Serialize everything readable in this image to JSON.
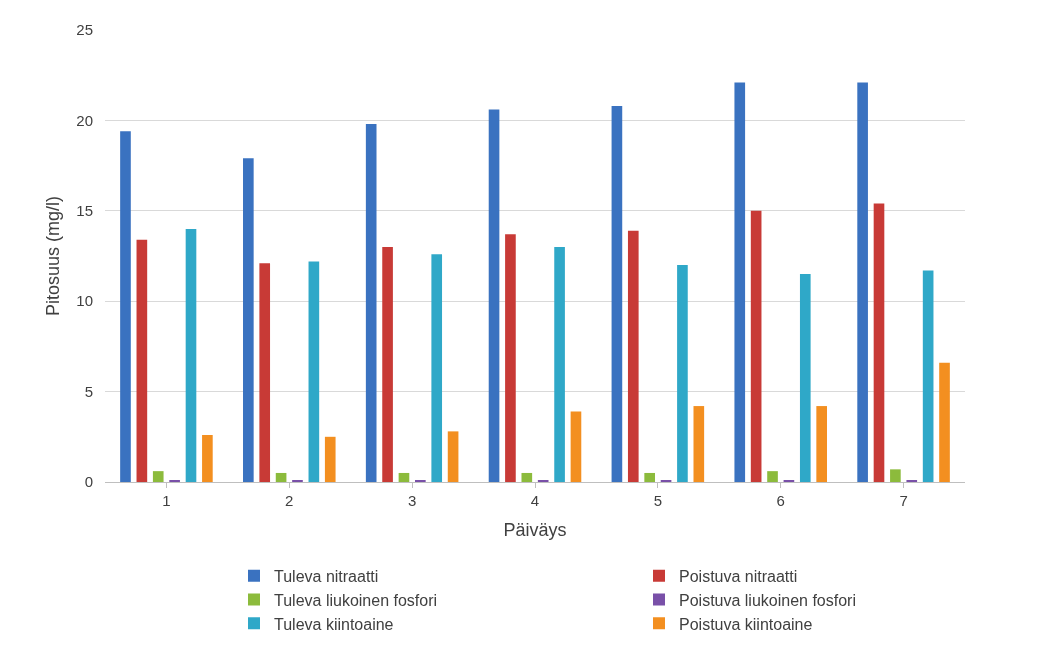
{
  "chart_data": {
    "type": "bar",
    "xlabel": "Päiväys",
    "ylabel": "Pitosuus (mg/l)",
    "categories": [
      "1",
      "2",
      "3",
      "4",
      "5",
      "6",
      "7"
    ],
    "series": [
      {
        "name": "Tuleva nitraatti",
        "color": "#3a72c0",
        "values": [
          19.4,
          17.9,
          19.8,
          20.6,
          20.8,
          22.1,
          22.1
        ]
      },
      {
        "name": "Poistuva nitraatti",
        "color": "#c83a36",
        "values": [
          13.4,
          12.1,
          13.0,
          13.7,
          13.9,
          15.0,
          15.4
        ]
      },
      {
        "name": "Tuleva liukoinen fosfori",
        "color": "#8cbb3c",
        "values": [
          0.6,
          0.5,
          0.5,
          0.5,
          0.5,
          0.6,
          0.7
        ]
      },
      {
        "name": "Poistuva liukoinen fosfori",
        "color": "#7950a8",
        "values": [
          0.1,
          0.1,
          0.1,
          0.1,
          0.1,
          0.1,
          0.1
        ]
      },
      {
        "name": "Tuleva kiintoaine",
        "color": "#2fa8c8",
        "values": [
          14.0,
          12.2,
          12.6,
          13.0,
          12.0,
          11.5,
          11.7
        ]
      },
      {
        "name": "Poistuva kiintoaine",
        "color": "#f38f20",
        "values": [
          2.6,
          2.5,
          2.8,
          3.9,
          4.2,
          4.2,
          6.6
        ]
      }
    ],
    "ylim": [
      0,
      25
    ],
    "yticks": [
      0,
      5,
      10,
      15,
      20,
      25
    ],
    "grid": "y",
    "legend": "bottom"
  }
}
